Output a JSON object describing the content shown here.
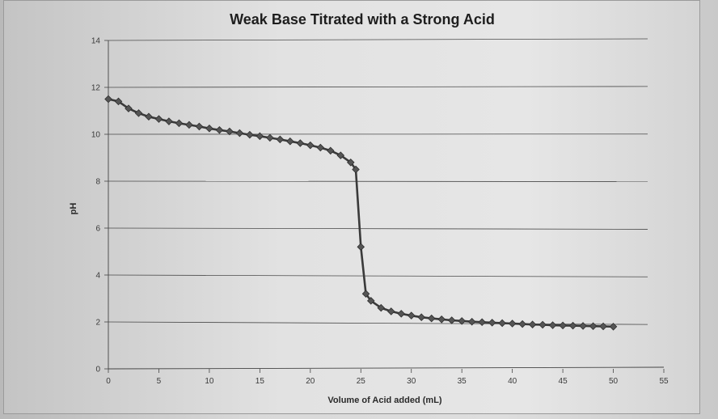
{
  "chart_data": {
    "type": "line",
    "title": "Weak Base Titrated with a Strong Acid",
    "xlabel": "Volume of Acid added (mL)",
    "ylabel": "pH",
    "xlim": [
      0,
      55
    ],
    "ylim": [
      0,
      14
    ],
    "x_ticks": [
      0,
      5,
      10,
      15,
      20,
      25,
      30,
      35,
      40,
      45,
      50,
      55
    ],
    "y_ticks": [
      0,
      2,
      4,
      6,
      8,
      10,
      12,
      14
    ],
    "grid": "horizontal",
    "legend": "none",
    "series": [
      {
        "color": "#3a3a3a",
        "marker": "diamond",
        "x": [
          0,
          1,
          2,
          3,
          4,
          5,
          6,
          7,
          8,
          9,
          10,
          11,
          12,
          13,
          14,
          15,
          16,
          17,
          18,
          19,
          20,
          21,
          22,
          23,
          24,
          24.5,
          25,
          25.5,
          26,
          27,
          28,
          29,
          30,
          31,
          32,
          33,
          34,
          35,
          36,
          37,
          38,
          39,
          40,
          41,
          42,
          43,
          44,
          45,
          46,
          47,
          48,
          49,
          50
        ],
        "y": [
          11.5,
          11.4,
          11.1,
          10.9,
          10.75,
          10.65,
          10.55,
          10.47,
          10.4,
          10.33,
          10.25,
          10.18,
          10.12,
          10.05,
          9.98,
          9.92,
          9.85,
          9.78,
          9.7,
          9.62,
          9.53,
          9.43,
          9.3,
          9.1,
          8.8,
          8.5,
          5.2,
          3.2,
          2.9,
          2.6,
          2.45,
          2.35,
          2.27,
          2.2,
          2.15,
          2.11,
          2.07,
          2.04,
          2.01,
          1.99,
          1.97,
          1.95,
          1.93,
          1.91,
          1.89,
          1.88,
          1.86,
          1.85,
          1.84,
          1.83,
          1.82,
          1.81,
          1.8
        ]
      }
    ]
  }
}
